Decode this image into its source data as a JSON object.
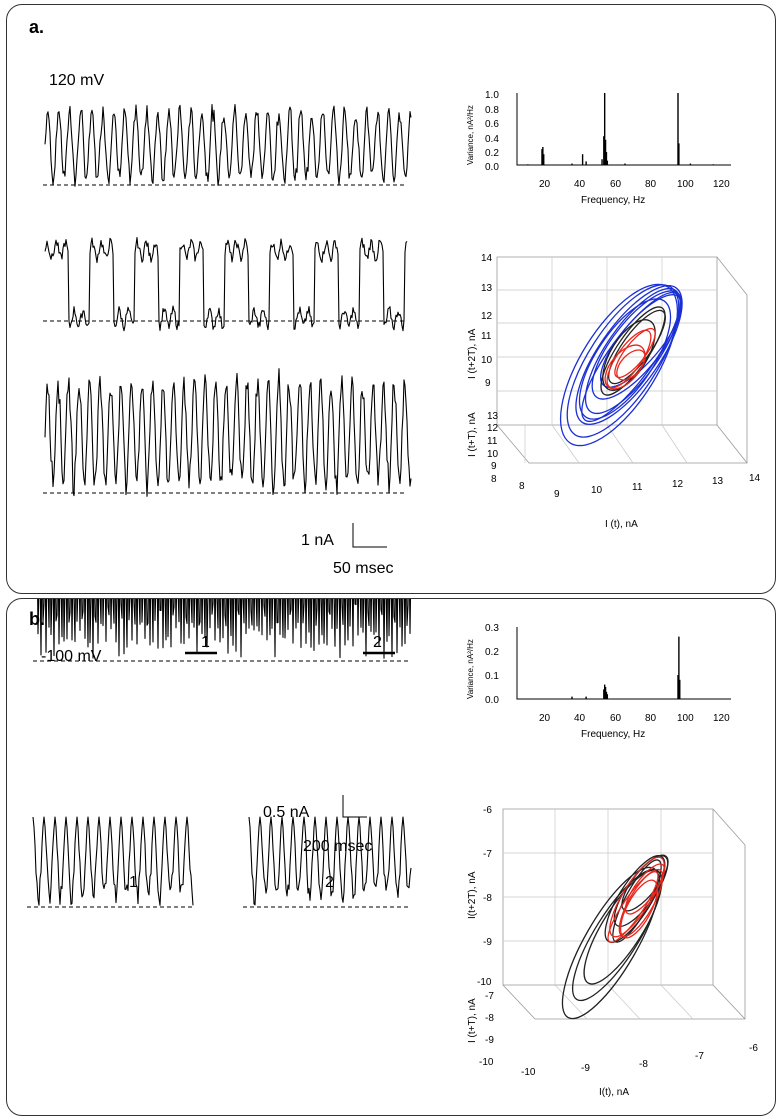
{
  "panels": {
    "a": {
      "label": "a.",
      "voltage": "120 mV",
      "scale_current": "1 nA",
      "scale_time": "50 msec"
    },
    "b": {
      "label": "b.",
      "voltage": "-100 mV",
      "marker1": "1",
      "marker2": "2",
      "scale_current": "0.5 nA",
      "scale_time": "200 msec",
      "inset1": "1",
      "inset2": "2"
    }
  },
  "colors": {
    "trace": "#000000",
    "blue_loops": "#1a2fd6",
    "red_loops": "#e8261c",
    "black_loops": "#222222"
  },
  "chart_data": [
    {
      "id": "a-spectrum",
      "type": "bar",
      "xlabel": "Frequency, Hz",
      "ylabel": "Variance, nA²/Hz",
      "xlim": [
        0,
        120
      ],
      "ylim": [
        0,
        1.0
      ],
      "xticks": [
        "20",
        "40",
        "60",
        "80",
        "100",
        "120"
      ],
      "yticks": [
        "0.0",
        "0.2",
        "0.4",
        "0.6",
        "0.8",
        "1.0"
      ],
      "x": [
        5,
        13,
        13.5,
        14,
        30,
        36,
        38,
        47,
        48,
        48.5,
        49,
        49.5,
        50,
        60,
        90,
        90.5,
        97,
        110
      ],
      "values": [
        0.01,
        0.22,
        0.25,
        0.15,
        0.02,
        0.15,
        0.05,
        0.08,
        0.4,
        1.0,
        0.35,
        0.18,
        0.06,
        0.02,
        1.0,
        0.3,
        0.02,
        0.01
      ]
    },
    {
      "id": "a-phase",
      "type": "line",
      "xlabel": "I (t), nA",
      "ylabel": "I (t+2T), nA",
      "zlabel": "I (t+T), nA",
      "xticks": [
        "8",
        "9",
        "10",
        "11",
        "12",
        "13",
        "14"
      ],
      "yticks": [
        "9",
        "10",
        "11",
        "12",
        "13",
        "14"
      ],
      "zticks": [
        "8",
        "9",
        "10",
        "11",
        "12",
        "13"
      ]
    },
    {
      "id": "b-spectrum",
      "type": "bar",
      "xlabel": "Frequency, Hz",
      "ylabel": "Variance, nA²/Hz",
      "xlim": [
        0,
        120
      ],
      "ylim": [
        0,
        0.3
      ],
      "xticks": [
        "20",
        "40",
        "60",
        "80",
        "100",
        "120"
      ],
      "yticks": [
        "0.0",
        "0.1",
        "0.2",
        "0.3"
      ],
      "x": [
        30,
        38,
        48,
        48.5,
        49,
        49.5,
        50,
        90,
        90.5,
        91
      ],
      "values": [
        0.01,
        0.01,
        0.04,
        0.06,
        0.05,
        0.03,
        0.02,
        0.1,
        0.26,
        0.08
      ]
    },
    {
      "id": "b-phase",
      "type": "line",
      "xlabel": "I(t), nA",
      "ylabel": "I(t+2T), nA",
      "zlabel": "I (t+T), nA",
      "xticks": [
        "-10",
        "-9",
        "-8",
        "-7",
        "-6"
      ],
      "yticks": [
        "-10",
        "-9",
        "-8",
        "-7",
        "-6"
      ],
      "zticks": [
        "-10",
        "-9",
        "-8",
        "-7"
      ]
    }
  ]
}
